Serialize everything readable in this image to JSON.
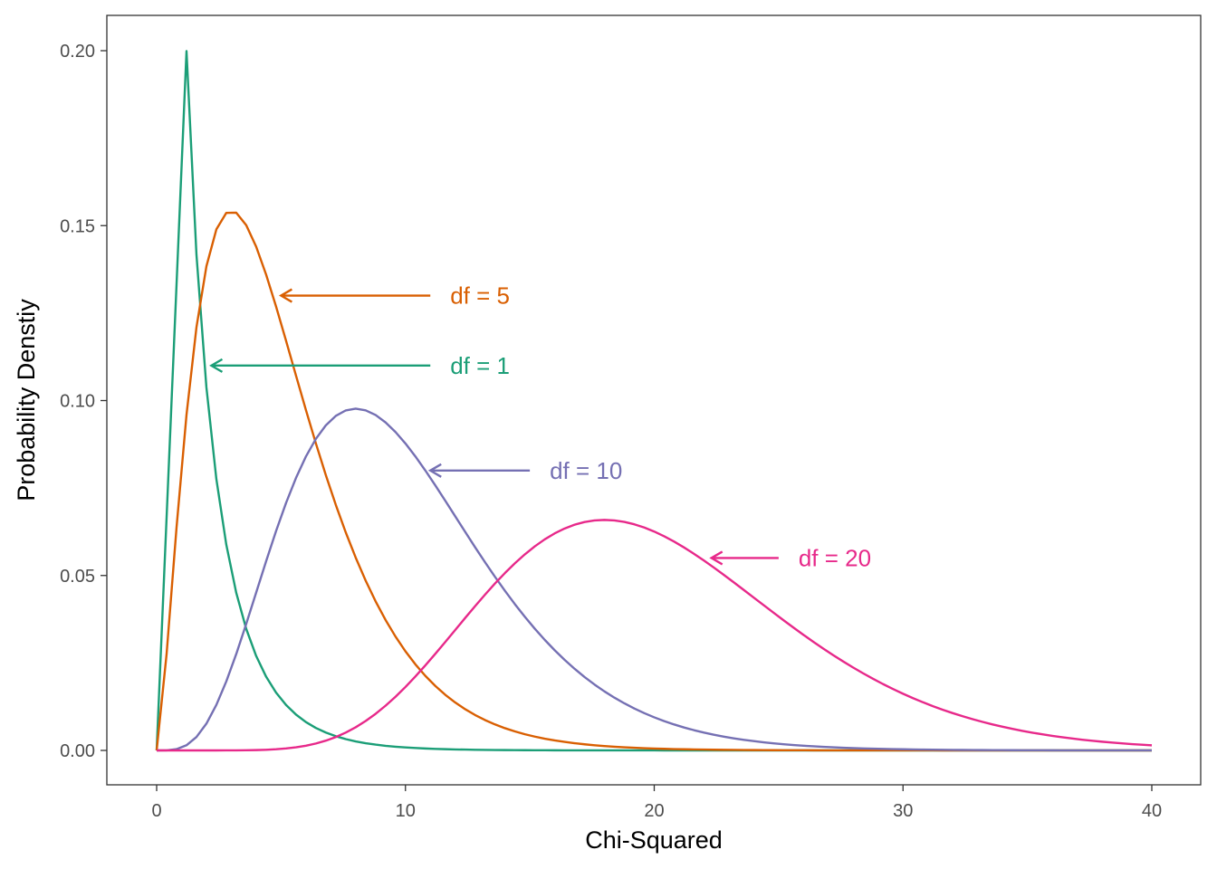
{
  "chart_data": {
    "type": "line",
    "title": "",
    "xlabel": "Chi-Squared",
    "ylabel": "Probability Denstiy",
    "xlim": [
      -2,
      40.5
    ],
    "ylim": [
      -0.0098,
      0.2
    ],
    "x_ticks": [
      0,
      10,
      20,
      30,
      40
    ],
    "x_tick_labels": [
      "0",
      "10",
      "20",
      "30",
      "40"
    ],
    "y_ticks": [
      0.0,
      0.05,
      0.1,
      0.15,
      0.2
    ],
    "y_tick_labels": [
      "0.00",
      "0.05",
      "0.10",
      "0.15",
      "0.20"
    ],
    "grid": false,
    "legend": "none",
    "x_domain": [
      0,
      40
    ],
    "y_cap": 0.2,
    "series": [
      {
        "name": "df = 1",
        "df": 1,
        "color": "#1B9E77"
      },
      {
        "name": "df = 5",
        "df": 5,
        "color": "#D95F02"
      },
      {
        "name": "df = 10",
        "df": 10,
        "color": "#7570B3"
      },
      {
        "name": "df = 20",
        "df": 20,
        "color": "#E7298A"
      }
    ],
    "annotations": [
      {
        "text": "df = 5",
        "color": "#D95F02",
        "label_x": 11.8,
        "label_y": 0.13,
        "arrow_from": [
          11,
          0.13
        ],
        "arrow_to": [
          5.0,
          0.13
        ]
      },
      {
        "text": "df = 1",
        "color": "#1B9E77",
        "label_x": 11.8,
        "label_y": 0.11,
        "arrow_from": [
          11,
          0.11
        ],
        "arrow_to": [
          2.2,
          0.11
        ]
      },
      {
        "text": "df = 10",
        "color": "#7570B3",
        "label_x": 15.8,
        "label_y": 0.08,
        "arrow_from": [
          15,
          0.08
        ],
        "arrow_to": [
          11.0,
          0.08
        ]
      },
      {
        "text": "df = 20",
        "color": "#E7298A",
        "label_x": 25.8,
        "label_y": 0.055,
        "arrow_from": [
          25,
          0.055
        ],
        "arrow_to": [
          22.3,
          0.055
        ]
      }
    ]
  }
}
